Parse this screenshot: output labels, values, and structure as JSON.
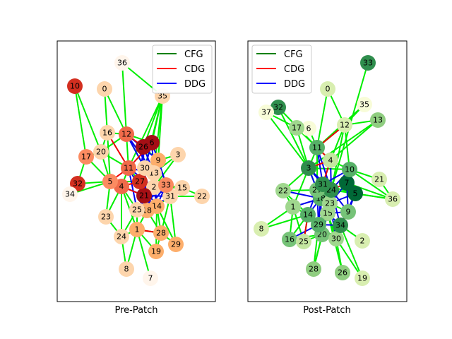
{
  "panels": [
    {
      "caption": "Pre-Patch",
      "legend": [
        {
          "label": "CFG",
          "color": "#008000"
        },
        {
          "label": "CDG",
          "color": "#ff0000"
        },
        {
          "label": "DDG",
          "color": "#0000ff"
        }
      ],
      "nodes": {
        "0": [
          "148",
          "126",
          "#fdd5ac"
        ],
        "1": [
          "194",
          "325",
          "#fdae6b"
        ],
        "2": [
          "218",
          "265",
          "#fdd5ac"
        ],
        "3": [
          "252",
          "219",
          "#fdd5ac"
        ],
        "4": [
          "172",
          "264",
          "#f06a4a"
        ],
        "5": [
          "156",
          "257",
          "#fb8b61"
        ],
        "6": [
          "215",
          "202",
          "#a50f15"
        ],
        "7": [
          "213",
          "394",
          "#fff5eb"
        ],
        "8": [
          "179",
          "381",
          "#fdd5ac"
        ],
        "9": [
          "224",
          "227",
          "#fdae6b"
        ],
        "10": [
          "106",
          "122",
          "#d32f20"
        ],
        "11": [
          "182",
          "238",
          "#f06a4a"
        ],
        "12": [
          "179",
          "190",
          "#f06a4a"
        ],
        "13": [
          "218",
          "245",
          "#fdd5ac"
        ],
        "14": [
          "222",
          "292",
          "#fdae6b"
        ],
        "15": [
          "258",
          "266",
          "#fdd5ac"
        ],
        "16": [
          "152",
          "188",
          "#fdd5ac"
        ],
        "17": [
          "122",
          "222",
          "#fb8b61"
        ],
        "18": [
          "208",
          "298",
          "#fdae6b"
        ],
        "19": [
          "221",
          "356",
          "#fdae6b"
        ],
        "20": [
          "143",
          "215",
          "#fdd5ac"
        ],
        "21": [
          "204",
          "277",
          "#a50f15"
        ],
        "22": [
          "286",
          "278",
          "#fdd5ac"
        ],
        "23": [
          "150",
          "307",
          "#fdd5ac"
        ],
        "24": [
          "172",
          "335",
          "#fdd5ac"
        ],
        "25": [
          "194",
          "297",
          "#fdd5ac"
        ],
        "26": [
          "203",
          "208",
          "#a50f15"
        ],
        "27": [
          "198",
          "257",
          "#d32f20"
        ],
        "28": [
          "228",
          "330",
          "#fdae6b"
        ],
        "29": [
          "249",
          "346",
          "#fdae6b"
        ],
        "30": [
          "205",
          "238",
          "#fdd5ac"
        ],
        "31": [
          "241",
          "278",
          "#fdd5ac"
        ],
        "32": [
          "110",
          "260",
          "#d32f20"
        ],
        "33": [
          "235",
          "262",
          "#fb8b61"
        ],
        "34": [
          "99",
          "275",
          "#fff5eb"
        ],
        "35": [
          "230",
          "136",
          "#fdd5ac"
        ],
        "36": [
          "173",
          "89",
          "#fff5eb"
        ]
      },
      "cfg_edges": [
        [
          "0",
          "16"
        ],
        [
          "0",
          "12"
        ],
        [
          "10",
          "20"
        ],
        [
          "10",
          "17"
        ],
        [
          "16",
          "12"
        ],
        [
          "16",
          "20"
        ],
        [
          "16",
          "5"
        ],
        [
          "36",
          "35"
        ],
        [
          "36",
          "12"
        ],
        [
          "35",
          "6"
        ],
        [
          "35",
          "26"
        ],
        [
          "35",
          "9"
        ],
        [
          "35",
          "30"
        ],
        [
          "35",
          "13"
        ],
        [
          "35",
          "11"
        ],
        [
          "12",
          "11"
        ],
        [
          "12",
          "26"
        ],
        [
          "12",
          "6"
        ],
        [
          "12",
          "30"
        ],
        [
          "12",
          "20"
        ],
        [
          "17",
          "20"
        ],
        [
          "17",
          "5"
        ],
        [
          "20",
          "5"
        ],
        [
          "20",
          "11"
        ],
        [
          "32",
          "5"
        ],
        [
          "32",
          "34"
        ],
        [
          "32",
          "17"
        ],
        [
          "34",
          "5"
        ],
        [
          "5",
          "4"
        ],
        [
          "5",
          "23"
        ],
        [
          "5",
          "27"
        ],
        [
          "4",
          "23"
        ],
        [
          "4",
          "24"
        ],
        [
          "4",
          "25"
        ],
        [
          "4",
          "1"
        ],
        [
          "11",
          "27"
        ],
        [
          "11",
          "4"
        ],
        [
          "30",
          "13"
        ],
        [
          "13",
          "2"
        ],
        [
          "3",
          "9"
        ],
        [
          "3",
          "13"
        ],
        [
          "3",
          "2"
        ],
        [
          "2",
          "31"
        ],
        [
          "2",
          "15"
        ],
        [
          "15",
          "22"
        ],
        [
          "15",
          "33"
        ],
        [
          "31",
          "22"
        ],
        [
          "31",
          "14"
        ],
        [
          "31",
          "29"
        ],
        [
          "31",
          "28"
        ],
        [
          "14",
          "28"
        ],
        [
          "14",
          "29"
        ],
        [
          "18",
          "28"
        ],
        [
          "18",
          "1"
        ],
        [
          "25",
          "1"
        ],
        [
          "25",
          "24"
        ],
        [
          "1",
          "24"
        ],
        [
          "1",
          "8"
        ],
        [
          "1",
          "19"
        ],
        [
          "1",
          "7"
        ],
        [
          "1",
          "28"
        ],
        [
          "28",
          "29"
        ],
        [
          "19",
          "28"
        ],
        [
          "24",
          "8"
        ],
        [
          "23",
          "24"
        ],
        [
          "25",
          "18"
        ],
        [
          "14",
          "19"
        ],
        [
          "9",
          "30"
        ],
        [
          "26",
          "9"
        ]
      ],
      "cdg_edges": [
        [
          "12",
          "26"
        ],
        [
          "16",
          "11"
        ],
        [
          "11",
          "6"
        ],
        [
          "27",
          "4"
        ],
        [
          "1",
          "28"
        ],
        [
          "5",
          "11"
        ],
        [
          "21",
          "4"
        ]
      ],
      "ddg_edges": [
        [
          "12",
          "30"
        ],
        [
          "12",
          "13"
        ],
        [
          "12",
          "9"
        ],
        [
          "6",
          "30"
        ],
        [
          "6",
          "13"
        ],
        [
          "6",
          "9"
        ],
        [
          "26",
          "27"
        ],
        [
          "26",
          "21"
        ],
        [
          "11",
          "21"
        ],
        [
          "11",
          "2"
        ],
        [
          "11",
          "25"
        ],
        [
          "30",
          "21"
        ],
        [
          "30",
          "18"
        ],
        [
          "9",
          "31"
        ],
        [
          "9",
          "33"
        ],
        [
          "13",
          "14"
        ],
        [
          "13",
          "18"
        ],
        [
          "27",
          "18"
        ],
        [
          "27",
          "14"
        ],
        [
          "27",
          "31"
        ],
        [
          "27",
          "33"
        ],
        [
          "21",
          "14"
        ],
        [
          "21",
          "31"
        ],
        [
          "21",
          "18"
        ],
        [
          "2",
          "14"
        ],
        [
          "2",
          "18"
        ],
        [
          "25",
          "21"
        ],
        [
          "25",
          "33"
        ],
        [
          "4",
          "21"
        ],
        [
          "5",
          "21"
        ],
        [
          "33",
          "14"
        ],
        [
          "33",
          "18"
        ],
        [
          "31",
          "18"
        ],
        [
          "26",
          "13"
        ],
        [
          "11",
          "13"
        ],
        [
          "30",
          "27"
        ],
        [
          "2",
          "25"
        ]
      ]
    },
    {
      "caption": "Post-Patch",
      "legend": [
        {
          "label": "CFG",
          "color": "#008000"
        },
        {
          "label": "CDG",
          "color": "#ff0000"
        },
        {
          "label": "DDG",
          "color": "#0000ff"
        }
      ],
      "nodes": {
        "0": [
          "464",
          "126",
          "#d8eeb0"
        ],
        "1": [
          "415",
          "293",
          "#a0d78e"
        ],
        "2": [
          "513",
          "341",
          "#d8eeb0"
        ],
        "3": [
          "437",
          "238",
          "#2f8e4d"
        ],
        "4": [
          "468",
          "227",
          "#c4e6a0"
        ],
        "5": [
          "503",
          "274",
          "#006837"
        ],
        "6": [
          "437",
          "182",
          "#f8fcd8"
        ],
        "7": [
          "491",
          "259",
          "#006837"
        ],
        "8": [
          "370",
          "324",
          "#d8eeb0"
        ],
        "9": [
          "493",
          "300",
          "#76c378"
        ],
        "10": [
          "495",
          "240",
          "#56b067"
        ],
        "11": [
          "449",
          "209",
          "#56b067"
        ],
        "12": [
          "488",
          "177",
          "#d8eeb0"
        ],
        "13": [
          "535",
          "170",
          "#8fcd80"
        ],
        "14": [
          "436",
          "304",
          "#56b067"
        ],
        "15": [
          "464",
          "302",
          "#a0d78e"
        ],
        "16": [
          "410",
          "339",
          "#76c378"
        ],
        "17": [
          "420",
          "181",
          "#a0d78e"
        ],
        "18": [
          "454",
          "281",
          "#56b067"
        ],
        "19": [
          "513",
          "394",
          "#d8eeb0"
        ],
        "20": [
          "456",
          "332",
          "#76c378"
        ],
        "21": [
          "537",
          "254",
          "#d8eeb0"
        ],
        "22": [
          "401",
          "270",
          "#a0d78e"
        ],
        "23": [
          "467",
          "288",
          "#a0d78e"
        ],
        "24": [
          "469",
          "269",
          "#2f8e4d"
        ],
        "25": [
          "430",
          "342",
          "#c4e6a0"
        ],
        "26": [
          "485",
          "386",
          "#8fcd80"
        ],
        "27": [
          "449",
          "269",
          "#76c378"
        ],
        "28": [
          "444",
          "381",
          "#8fcd80"
        ],
        "29": [
          "451",
          "318",
          "#56b067"
        ],
        "30": [
          "476",
          "338",
          "#a0d78e"
        ],
        "31": [
          "457",
          "261",
          "#2f8e4d"
        ],
        "32": [
          "394",
          "152",
          "#2f8e4d"
        ],
        "33": [
          "521",
          "89",
          "#2f8e4d"
        ],
        "34": [
          "482",
          "319",
          "#2f8e4d"
        ],
        "35": [
          "516",
          "148",
          "#f8fcd8"
        ],
        "36": [
          "556",
          "282",
          "#d8eeb0"
        ],
        "37": [
          "377",
          "159",
          "#f8fcd8"
        ]
      },
      "cfg_edges": [
        [
          "0",
          "11"
        ],
        [
          "0",
          "12"
        ],
        [
          "32",
          "3"
        ],
        [
          "32",
          "11"
        ],
        [
          "37",
          "3"
        ],
        [
          "37",
          "17"
        ],
        [
          "17",
          "11"
        ],
        [
          "17",
          "3"
        ],
        [
          "6",
          "11"
        ],
        [
          "35",
          "12"
        ],
        [
          "35",
          "11"
        ],
        [
          "12",
          "11"
        ],
        [
          "12",
          "13"
        ],
        [
          "12",
          "10"
        ],
        [
          "12",
          "4"
        ],
        [
          "12",
          "24"
        ],
        [
          "13",
          "4"
        ],
        [
          "13",
          "3"
        ],
        [
          "33",
          "24"
        ],
        [
          "11",
          "3"
        ],
        [
          "11",
          "4"
        ],
        [
          "11",
          "27"
        ],
        [
          "3",
          "22"
        ],
        [
          "3",
          "1"
        ],
        [
          "3",
          "18"
        ],
        [
          "3",
          "31"
        ],
        [
          "22",
          "1"
        ],
        [
          "22",
          "14"
        ],
        [
          "22",
          "27"
        ],
        [
          "1",
          "8"
        ],
        [
          "1",
          "16"
        ],
        [
          "1",
          "25"
        ],
        [
          "1",
          "14"
        ],
        [
          "8",
          "14"
        ],
        [
          "14",
          "16"
        ],
        [
          "14",
          "25"
        ],
        [
          "14",
          "29"
        ],
        [
          "25",
          "20"
        ],
        [
          "16",
          "20"
        ],
        [
          "29",
          "20"
        ],
        [
          "20",
          "28"
        ],
        [
          "20",
          "30"
        ],
        [
          "30",
          "26"
        ],
        [
          "30",
          "19"
        ],
        [
          "34",
          "30"
        ],
        [
          "34",
          "19"
        ],
        [
          "34",
          "2"
        ],
        [
          "29",
          "28"
        ],
        [
          "15",
          "20"
        ],
        [
          "15",
          "28"
        ],
        [
          "15",
          "26"
        ],
        [
          "23",
          "9"
        ],
        [
          "9",
          "34"
        ],
        [
          "10",
          "21"
        ],
        [
          "10",
          "36"
        ],
        [
          "21",
          "36"
        ],
        [
          "5",
          "36"
        ],
        [
          "7",
          "36"
        ],
        [
          "24",
          "36"
        ],
        [
          "10",
          "7"
        ],
        [
          "4",
          "10"
        ],
        [
          "3",
          "10"
        ],
        [
          "31",
          "5"
        ],
        [
          "29",
          "30"
        ],
        [
          "15",
          "30"
        ]
      ],
      "cdg_edges": [
        [
          "12",
          "11"
        ],
        [
          "4",
          "31"
        ],
        [
          "24",
          "7"
        ],
        [
          "25",
          "14"
        ],
        [
          "9",
          "34"
        ],
        [
          "3",
          "4"
        ],
        [
          "11",
          "4"
        ],
        [
          "27",
          "31"
        ]
      ],
      "ddg_edges": [
        [
          "11",
          "31"
        ],
        [
          "11",
          "24"
        ],
        [
          "3",
          "31"
        ],
        [
          "3",
          "24"
        ],
        [
          "3",
          "27"
        ],
        [
          "4",
          "31"
        ],
        [
          "4",
          "24"
        ],
        [
          "10",
          "31"
        ],
        [
          "10",
          "24"
        ],
        [
          "10",
          "7"
        ],
        [
          "31",
          "23"
        ],
        [
          "31",
          "15"
        ],
        [
          "31",
          "18"
        ],
        [
          "31",
          "29"
        ],
        [
          "24",
          "23"
        ],
        [
          "24",
          "15"
        ],
        [
          "24",
          "9"
        ],
        [
          "24",
          "34"
        ],
        [
          "27",
          "18"
        ],
        [
          "27",
          "29"
        ],
        [
          "27",
          "14"
        ],
        [
          "7",
          "5"
        ],
        [
          "7",
          "23"
        ],
        [
          "7",
          "9"
        ],
        [
          "5",
          "23"
        ],
        [
          "5",
          "9"
        ],
        [
          "5",
          "34"
        ],
        [
          "18",
          "29"
        ],
        [
          "18",
          "20"
        ],
        [
          "23",
          "29"
        ],
        [
          "23",
          "20"
        ],
        [
          "15",
          "34"
        ],
        [
          "9",
          "15"
        ],
        [
          "14",
          "18"
        ],
        [
          "1",
          "18"
        ],
        [
          "22",
          "18"
        ],
        [
          "16",
          "29"
        ],
        [
          "30",
          "23"
        ],
        [
          "29",
          "34"
        ]
      ]
    }
  ]
}
